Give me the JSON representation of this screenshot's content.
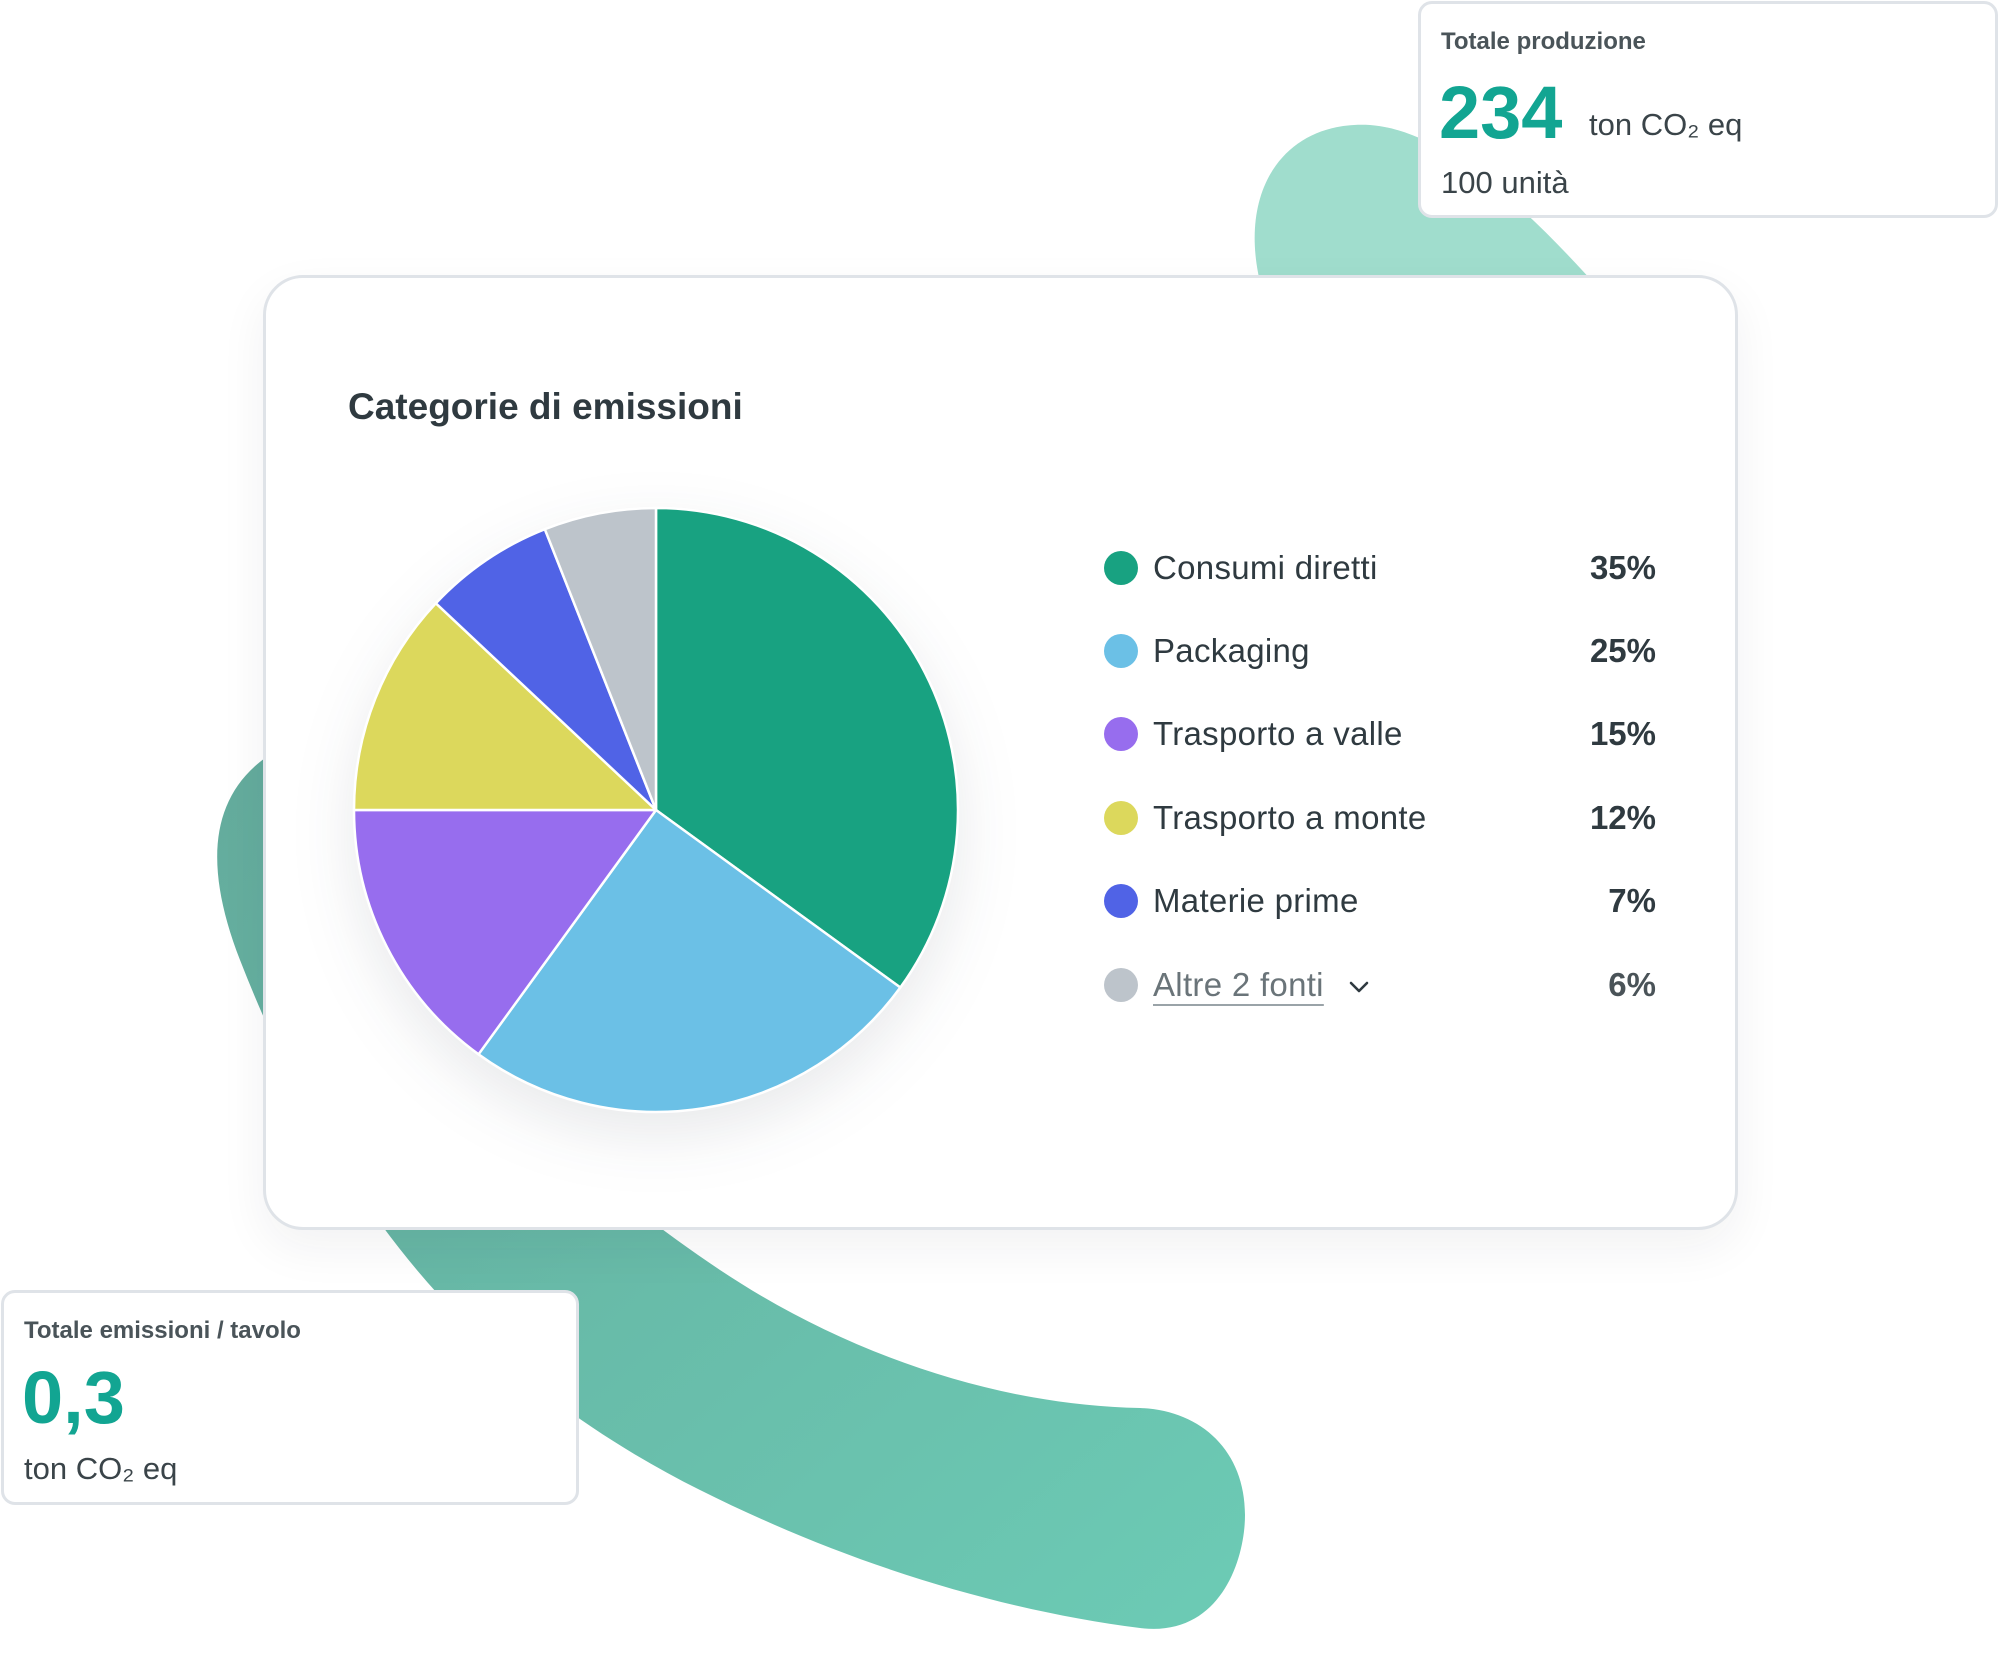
{
  "colors": {
    "accent": "#12a592",
    "decor_light": "#a0ddcd",
    "decor_dark": "#6bbdac"
  },
  "production_card": {
    "title": "Totale produzione",
    "value": "234",
    "unit": "ton CO₂ eq",
    "subtitle": "100 unità"
  },
  "emissions_card": {
    "title": "Totale emissioni / tavolo",
    "value": "0,3",
    "unit": "ton CO₂ eq"
  },
  "chart_card": {
    "title": "Categorie di emissioni",
    "expand_icon": "chevron-down-icon"
  },
  "chart_data": {
    "type": "pie",
    "title": "Categorie di emissioni",
    "legend_position": "right",
    "slices": [
      {
        "label": "Consumi diretti",
        "value": 35,
        "display": "35%",
        "color": "#18a281"
      },
      {
        "label": "Packaging",
        "value": 25,
        "display": "25%",
        "color": "#6bc0e6"
      },
      {
        "label": "Trasporto a valle",
        "value": 15,
        "display": "15%",
        "color": "#976dee"
      },
      {
        "label": "Trasporto a monte",
        "value": 12,
        "display": "12%",
        "color": "#dcd85c"
      },
      {
        "label": "Materie prime",
        "value": 7,
        "display": "7%",
        "color": "#5063e6"
      },
      {
        "label": "Altre 2 fonti",
        "value": 6,
        "display": "6%",
        "color": "#bdc4cb"
      }
    ]
  }
}
